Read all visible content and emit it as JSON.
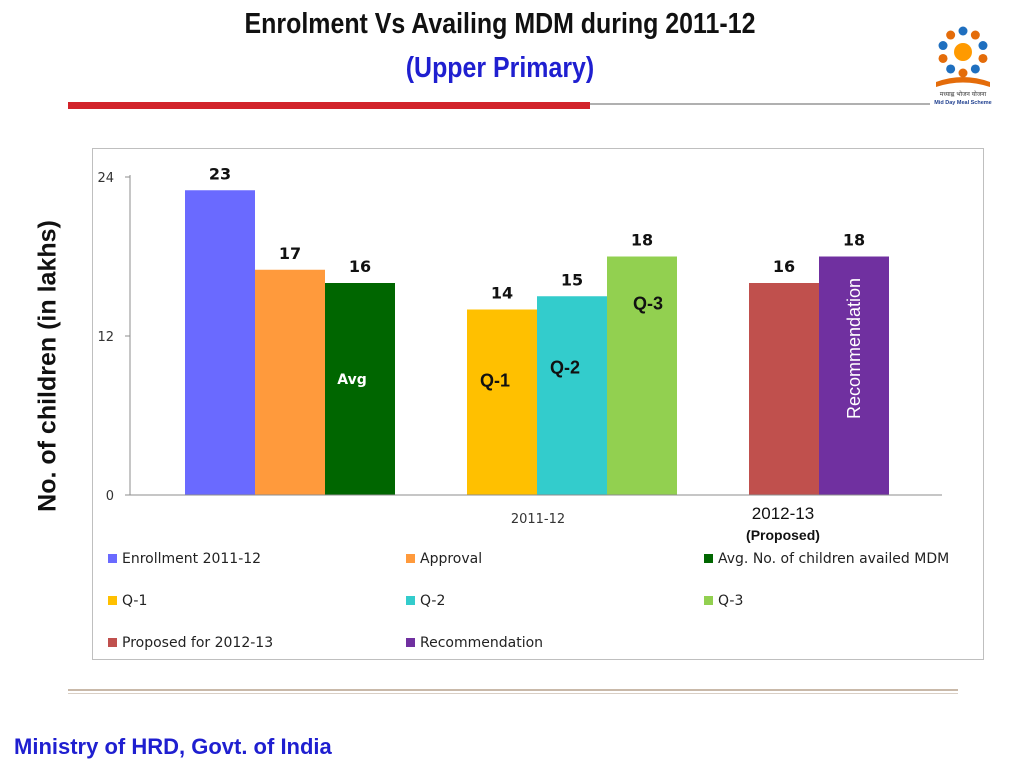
{
  "slide": {
    "title": "Enrolment Vs Availing MDM during  2011-12",
    "subtitle": "(Upper Primary)",
    "footer": "Ministry of HRD, Govt. of India",
    "logo_text": "मध्याह्न भोजन योजना",
    "logo_caption": "Mid Day Meal Scheme"
  },
  "chart_data": {
    "type": "bar",
    "ylabel": "No. of children (in lakhs)",
    "ylim": [
      0,
      24
    ],
    "yticks": [
      0,
      12,
      24
    ],
    "grid": false,
    "legend_position": "bottom",
    "groups": [
      {
        "label": "",
        "bars": [
          {
            "series": "Enrollment 2011-12",
            "value": 23,
            "color": "#6a6aff",
            "value_label": "23",
            "inner_label": ""
          },
          {
            "series": "Approval",
            "value": 17,
            "color": "#ff9a3c",
            "value_label": "17",
            "inner_label": ""
          },
          {
            "series": "Avg. No. of children availed MDM",
            "value": 16,
            "color": "#006600",
            "value_label": "16",
            "inner_label": "Avg"
          }
        ]
      },
      {
        "label": "2011-12",
        "bars": [
          {
            "series": "Q-1",
            "value": 14,
            "color": "#ffc000",
            "value_label": "14",
            "inner_label": "Q-1"
          },
          {
            "series": "Q-2",
            "value": 15,
            "color": "#33cccc",
            "value_label": "15",
            "inner_label": "Q-2"
          },
          {
            "series": "Q-3",
            "value": 18,
            "color": "#92d050",
            "value_label": "18",
            "inner_label": "Q-3"
          }
        ]
      },
      {
        "label": "2012-13",
        "sublabel": "(Proposed)",
        "bars": [
          {
            "series": "Proposed for 2012-13",
            "value": 16,
            "color": "#c0504d",
            "value_label": "16",
            "inner_label": ""
          },
          {
            "series": "Recommendation",
            "value": 18,
            "color": "#7030a0",
            "value_label": "18",
            "inner_label": "Recommendation"
          }
        ]
      }
    ],
    "legend": [
      {
        "name": "Enrollment 2011-12",
        "color": "#6a6aff"
      },
      {
        "name": "Approval",
        "color": "#ff9a3c"
      },
      {
        "name": "Avg. No. of children availed MDM",
        "color": "#006600"
      },
      {
        "name": "Q-1",
        "color": "#ffc000"
      },
      {
        "name": "Q-2",
        "color": "#33cccc"
      },
      {
        "name": "Q-3",
        "color": "#92d050"
      },
      {
        "name": "Proposed for 2012-13",
        "color": "#c0504d"
      },
      {
        "name": "Recommendation",
        "color": "#7030a0"
      }
    ]
  }
}
